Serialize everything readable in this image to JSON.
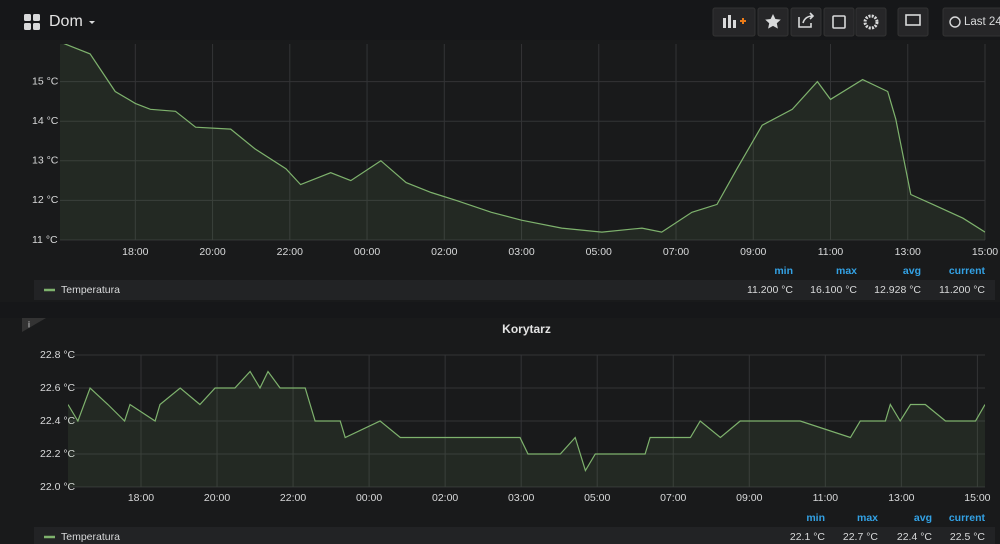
{
  "header": {
    "title": "Dom",
    "time_button": "Last 24"
  },
  "chart_data": [
    {
      "type": "line",
      "ylim": [
        11,
        15.95
      ],
      "yticks": [
        {
          "value": 11,
          "label": "11 °C"
        },
        {
          "value": 12,
          "label": "12 °C"
        },
        {
          "value": 13,
          "label": "13 °C"
        },
        {
          "value": 14,
          "label": "14 °C"
        },
        {
          "value": 15,
          "label": "15 °C"
        }
      ],
      "xlim": [
        16.05,
        40
      ],
      "xticks": [
        {
          "value": 18,
          "label": "18:00"
        },
        {
          "value": 20,
          "label": "20:00"
        },
        {
          "value": 22,
          "label": "22:00"
        },
        {
          "value": 24,
          "label": "00:00"
        },
        {
          "value": 26,
          "label": "02:00"
        },
        {
          "value": 28,
          "label": "03:00"
        },
        {
          "value": 30,
          "label": "05:00"
        },
        {
          "value": 32,
          "label": "07:00"
        },
        {
          "value": 34,
          "label": "09:00"
        },
        {
          "value": 36,
          "label": "11:00"
        },
        {
          "value": 38,
          "label": "13:00"
        },
        {
          "value": 40,
          "label": "15:00"
        }
      ],
      "grid": true,
      "x": [
        16.05,
        16.83,
        17.48,
        18.0,
        18.39,
        19.04,
        19.56,
        20.47,
        21.1,
        21.9,
        22.28,
        23.06,
        23.58,
        24.36,
        25.01,
        25.66,
        26.31,
        27.22,
        28.0,
        29.04,
        30.08,
        31.12,
        31.63,
        32.41,
        33.06,
        33.58,
        34.23,
        35.01,
        35.66,
        36.0,
        36.83,
        37.48,
        37.69,
        38.08,
        38.65,
        39.43,
        40.0
      ],
      "series": [
        {
          "name": "Temperatura",
          "color": "#7eb26d",
          "values": [
            16.0,
            15.7,
            14.75,
            14.45,
            14.3,
            14.25,
            13.85,
            13.8,
            13.3,
            12.8,
            12.4,
            12.7,
            12.5,
            13.0,
            12.45,
            12.2,
            12.0,
            11.7,
            11.5,
            11.3,
            11.2,
            11.3,
            11.2,
            11.7,
            11.9,
            12.8,
            13.9,
            14.3,
            15.0,
            14.55,
            15.05,
            14.75,
            14.05,
            12.15,
            11.9,
            11.55,
            11.2
          ]
        }
      ],
      "legend": {
        "columns": [
          "min",
          "max",
          "avg",
          "current"
        ],
        "values": [
          "11.200 °C",
          "16.100 °C",
          "12.928 °C",
          "11.200 °C"
        ]
      }
    },
    {
      "type": "line",
      "title": "Korytarz",
      "ylim": [
        22,
        22.8
      ],
      "yticks": [
        {
          "value": 22,
          "label": "22.0 °C"
        },
        {
          "value": 22.2,
          "label": "22.2 °C"
        },
        {
          "value": 22.4,
          "label": "22.4 °C"
        },
        {
          "value": 22.6,
          "label": "22.6 °C"
        },
        {
          "value": 22.8,
          "label": "22.8 °C"
        }
      ],
      "xlim": [
        16.08,
        40.2
      ],
      "xticks": [
        {
          "value": 18,
          "label": "18:00"
        },
        {
          "value": 20,
          "label": "20:00"
        },
        {
          "value": 22,
          "label": "22:00"
        },
        {
          "value": 24,
          "label": "00:00"
        },
        {
          "value": 26,
          "label": "02:00"
        },
        {
          "value": 28,
          "label": "03:00"
        },
        {
          "value": 30,
          "label": "05:00"
        },
        {
          "value": 32,
          "label": "07:00"
        },
        {
          "value": 34,
          "label": "09:00"
        },
        {
          "value": 36,
          "label": "11:00"
        },
        {
          "value": 38,
          "label": "13:00"
        },
        {
          "value": 40,
          "label": "15:00"
        }
      ],
      "grid": true,
      "x": [
        16.08,
        16.34,
        16.66,
        17.13,
        17.57,
        17.71,
        18.37,
        18.5,
        19.03,
        19.55,
        19.95,
        20.47,
        20.87,
        21.13,
        21.34,
        21.66,
        22.32,
        22.58,
        23.24,
        23.37,
        24.29,
        24.82,
        27.97,
        28.18,
        29.03,
        29.42,
        29.69,
        29.95,
        31.26,
        31.39,
        32.45,
        32.71,
        33.24,
        33.76,
        34.29,
        35.34,
        36.66,
        36.92,
        37.58,
        37.71,
        37.97,
        38.24,
        38.63,
        39.16,
        39.95,
        40.2
      ],
      "series": [
        {
          "name": "Temperatura",
          "color": "#7eb26d",
          "values": [
            22.5,
            22.4,
            22.6,
            22.5,
            22.4,
            22.5,
            22.4,
            22.5,
            22.6,
            22.5,
            22.6,
            22.6,
            22.7,
            22.6,
            22.7,
            22.6,
            22.6,
            22.4,
            22.4,
            22.3,
            22.4,
            22.3,
            22.3,
            22.2,
            22.2,
            22.3,
            22.1,
            22.2,
            22.2,
            22.3,
            22.3,
            22.4,
            22.3,
            22.4,
            22.4,
            22.4,
            22.3,
            22.4,
            22.4,
            22.5,
            22.4,
            22.5,
            22.5,
            22.4,
            22.4,
            22.5
          ]
        }
      ],
      "legend": {
        "columns": [
          "min",
          "max",
          "avg",
          "current"
        ],
        "values": [
          "22.1 °C",
          "22.7 °C",
          "22.4 °C",
          "22.5 °C"
        ]
      }
    }
  ]
}
